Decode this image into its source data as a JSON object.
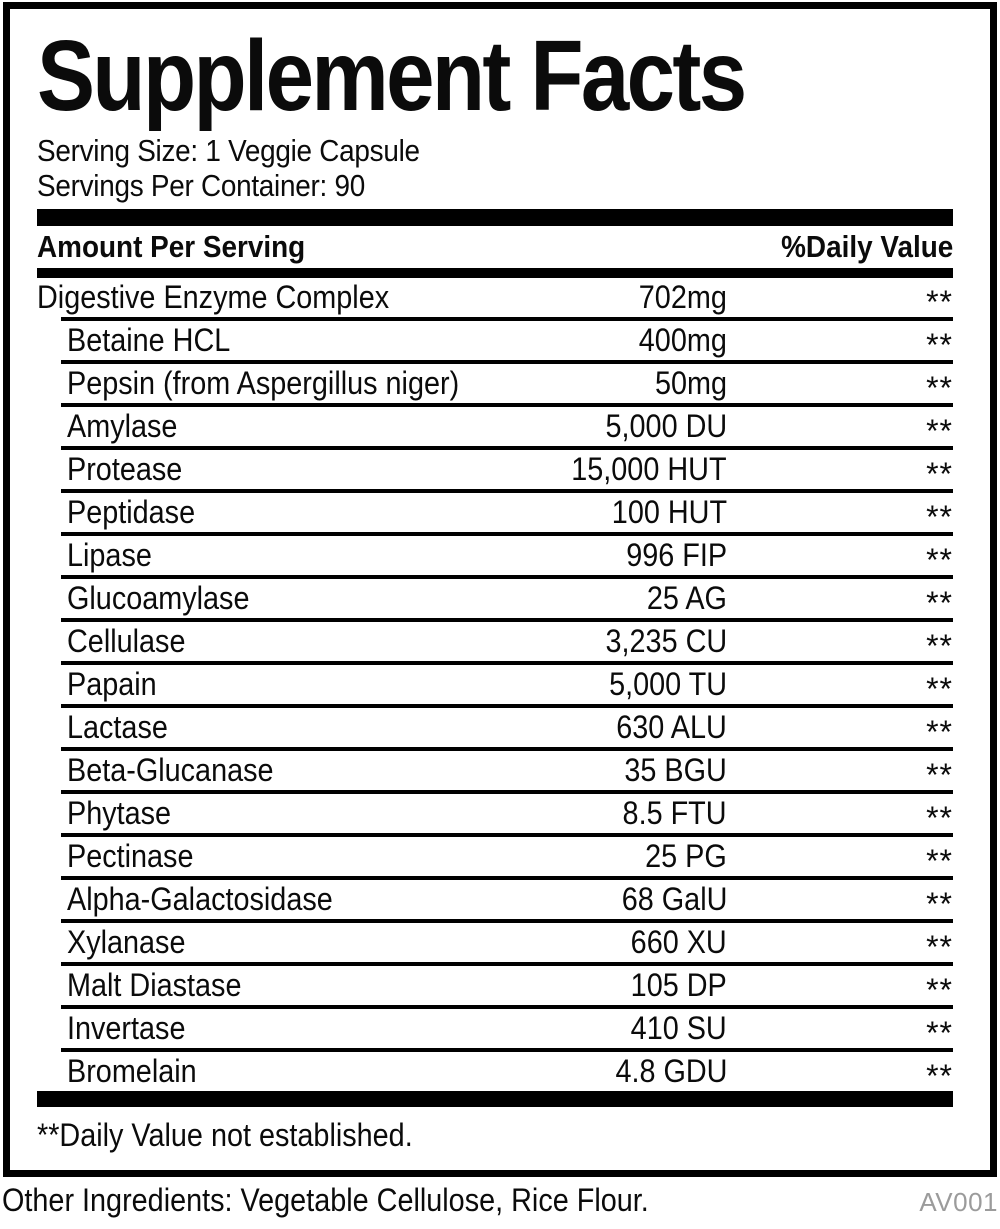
{
  "label": {
    "title": "Supplement Facts",
    "serving_size": "Serving Size: 1 Veggie Capsule",
    "servings_per_container": "Servings Per Container: 90",
    "header": {
      "amount_label": "Amount Per Serving",
      "daily_value_label": "%Daily Value"
    },
    "rows": [
      {
        "name": "Digestive Enzyme Complex",
        "amount": "702mg",
        "dv": "**",
        "indent": false
      },
      {
        "name": "Betaine HCL",
        "amount": "400mg",
        "dv": "**",
        "indent": true
      },
      {
        "name": "Pepsin (from Aspergillus niger)",
        "amount": "50mg",
        "dv": "**",
        "indent": true
      },
      {
        "name": "Amylase",
        "amount": "5,000 DU",
        "dv": "**",
        "indent": true
      },
      {
        "name": "Protease",
        "amount": "15,000 HUT",
        "dv": "**",
        "indent": true
      },
      {
        "name": "Peptidase",
        "amount": "100 HUT",
        "dv": "**",
        "indent": true
      },
      {
        "name": "Lipase",
        "amount": "996 FIP",
        "dv": "**",
        "indent": true
      },
      {
        "name": "Glucoamylase",
        "amount": "25 AG",
        "dv": "**",
        "indent": true
      },
      {
        "name": "Cellulase",
        "amount": "3,235 CU",
        "dv": "**",
        "indent": true
      },
      {
        "name": "Papain",
        "amount": "5,000 TU",
        "dv": "**",
        "indent": true
      },
      {
        "name": "Lactase",
        "amount": "630 ALU",
        "dv": "**",
        "indent": true
      },
      {
        "name": "Beta-Glucanase",
        "amount": "35 BGU",
        "dv": "**",
        "indent": true
      },
      {
        "name": "Phytase",
        "amount": "8.5 FTU",
        "dv": "**",
        "indent": true
      },
      {
        "name": "Pectinase",
        "amount": "25 PG",
        "dv": "**",
        "indent": true
      },
      {
        "name": "Alpha-Galactosidase",
        "amount": "68 GalU",
        "dv": "**",
        "indent": true
      },
      {
        "name": "Xylanase",
        "amount": "660 XU",
        "dv": "**",
        "indent": true
      },
      {
        "name": "Malt Diastase",
        "amount": "105 DP",
        "dv": "**",
        "indent": true
      },
      {
        "name": "Invertase",
        "amount": "410 SU",
        "dv": "**",
        "indent": true
      },
      {
        "name": "Bromelain",
        "amount": "4.8 GDU",
        "dv": "**",
        "indent": true
      }
    ],
    "footnote": "**Daily Value not established."
  },
  "footer": {
    "other_ingredients": "Other Ingredients: Vegetable Cellulose, Rice Flour.",
    "code": "AV001"
  },
  "colors": {
    "border": "#000000",
    "text": "#0b0b0b",
    "code_gray": "#9b9b9b",
    "background": "#ffffff"
  }
}
